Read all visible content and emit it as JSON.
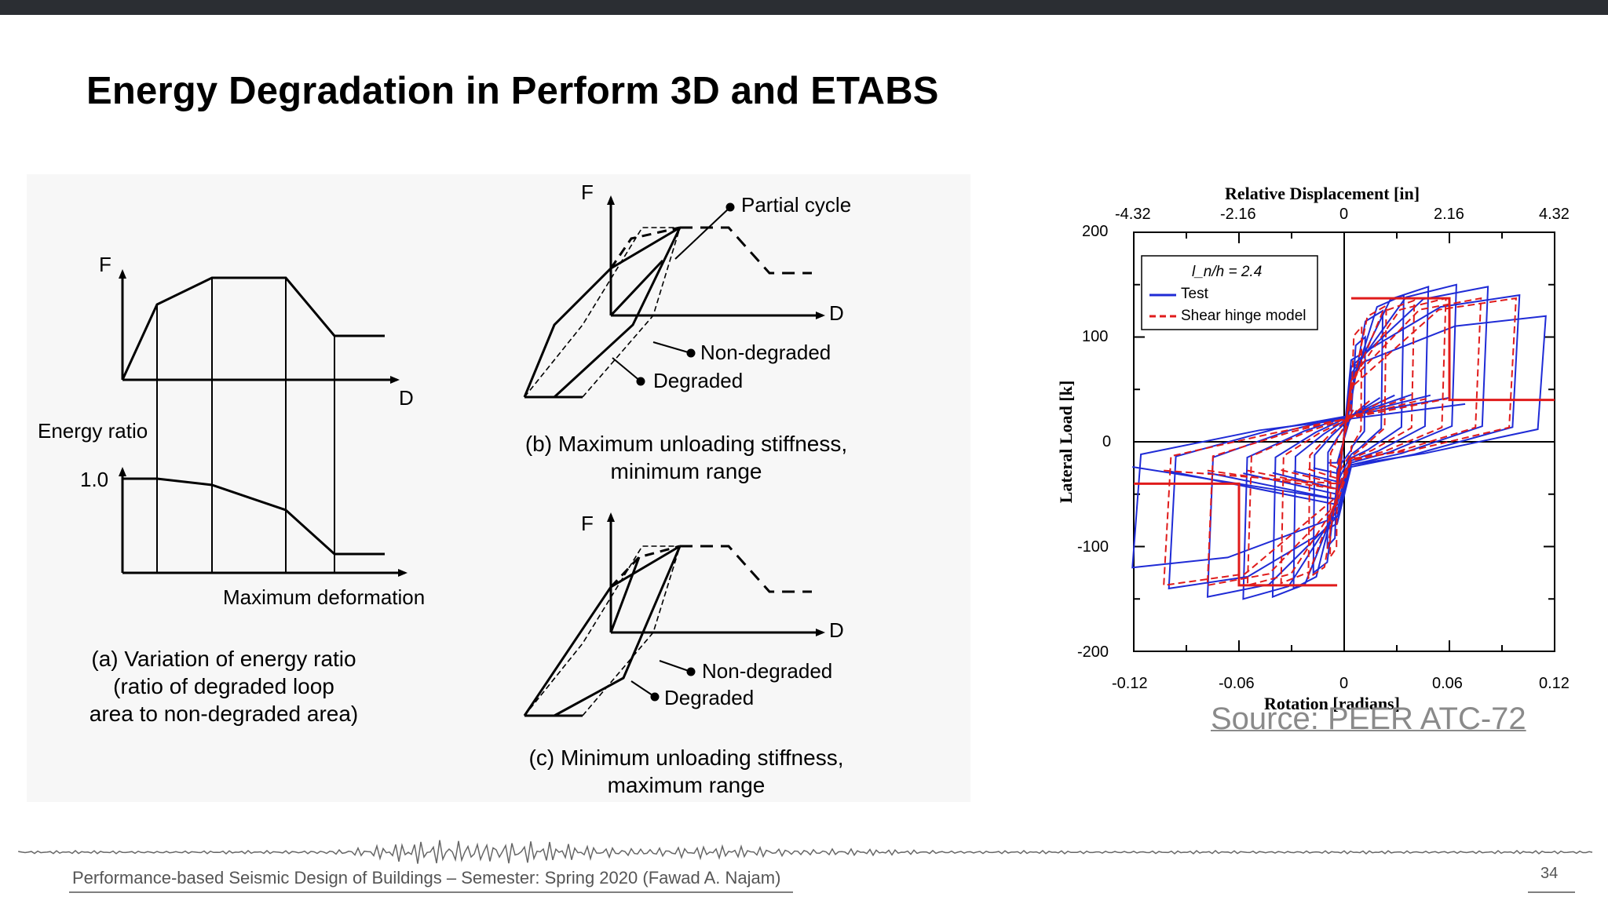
{
  "title": "Energy Degradation in Perform 3D and ETABS",
  "panel_a": {
    "f_label": "F",
    "d_label": "D",
    "energy_label": "Energy ratio",
    "one_label": "1.0",
    "xaxis_label": "Maximum deformation",
    "caption_l1": "(a) Variation of energy ratio",
    "caption_l2": "(ratio of degraded loop",
    "caption_l3": "area to non-degraded area)"
  },
  "panel_b": {
    "f_label": "F",
    "d_label": "D",
    "partial": "Partial cycle",
    "nondegraded": "Non-degraded",
    "degraded": "Degraded",
    "caption_l1": "(b) Maximum unloading stiffness,",
    "caption_l2": "minimum range"
  },
  "panel_c": {
    "f_label": "F",
    "d_label": "D",
    "nondegraded": "Non-degraded",
    "degraded": "Degraded",
    "caption_l1": "(c) Minimum unloading stiffness,",
    "caption_l2": "maximum range"
  },
  "hysteresis": {
    "top_axis_label": "Relative Displacement [in]",
    "top_ticks": [
      "-4.32",
      "-2.16",
      "0",
      "2.16",
      "4.32"
    ],
    "bottom_axis_label": "Rotation [radians]",
    "bottom_ticks": [
      "-0.12",
      "-0.06",
      "0",
      "0.06",
      "0.12"
    ],
    "y_axis_label": "Lateral Load [k]",
    "y_ticks": [
      "200",
      "100",
      "0",
      "-100",
      "-200"
    ],
    "legend_title": "l_n/h = 2.4",
    "legend_test": "Test",
    "legend_model": "Shear hinge model",
    "colors": {
      "test": "#1f2bd6",
      "model": "#e01b1b"
    }
  },
  "source": "Source: PEER ATC-72",
  "footer": "Performance-based Seismic Design of Buildings – Semester: Spring 2020 (Fawad A. Najam)",
  "page_number": "34"
}
